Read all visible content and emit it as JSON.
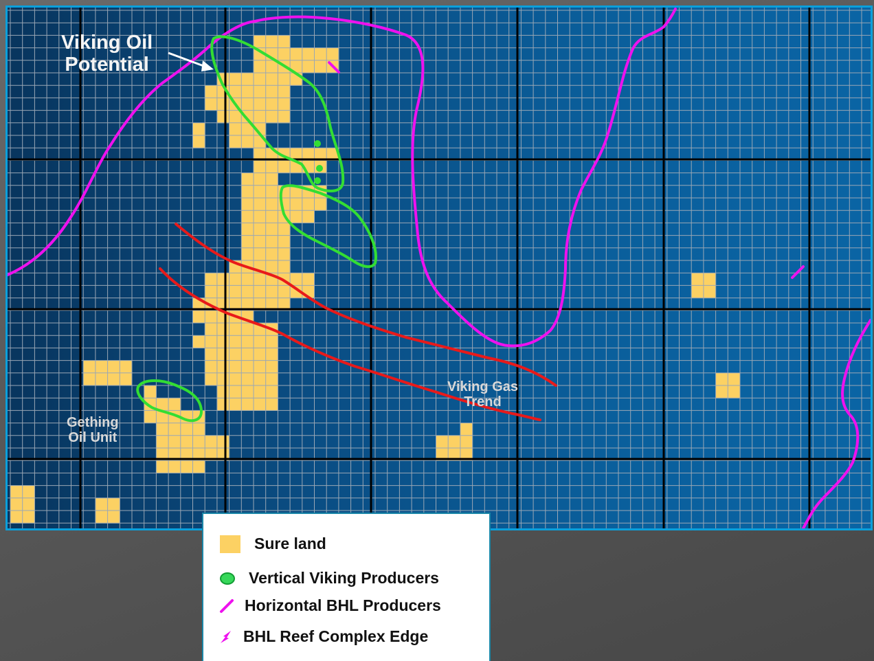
{
  "labels": {
    "viking_oil_potential": [
      "Viking Oil",
      "Potential"
    ],
    "gething_oil_unit": [
      "Gething",
      "Oil Unit"
    ],
    "viking_gas_trend": [
      "Viking Gas",
      "Trend"
    ]
  },
  "legend": {
    "items": [
      {
        "id": "land",
        "label": "Sure  land",
        "symbol": "land-swatch-icon"
      },
      {
        "id": "vertical",
        "label": "Vertical Viking Producers",
        "symbol": "green-dot-icon"
      },
      {
        "id": "horizontal",
        "label": "Horizontal BHL Producers",
        "symbol": "magenta-dash-icon"
      },
      {
        "id": "reef",
        "label": "BHL Reef Complex Edge",
        "symbol": "magenta-squiggle-icon"
      }
    ]
  },
  "colors": {
    "land": "#fcd163",
    "viking_producers": "#33dd33",
    "bhl_producers": "#ee11ee",
    "gas_trend": "#e81a1a",
    "frame_border": "#0aa0dc",
    "grid_minor": "#9aa7b5",
    "grid_major": "#000000"
  }
}
